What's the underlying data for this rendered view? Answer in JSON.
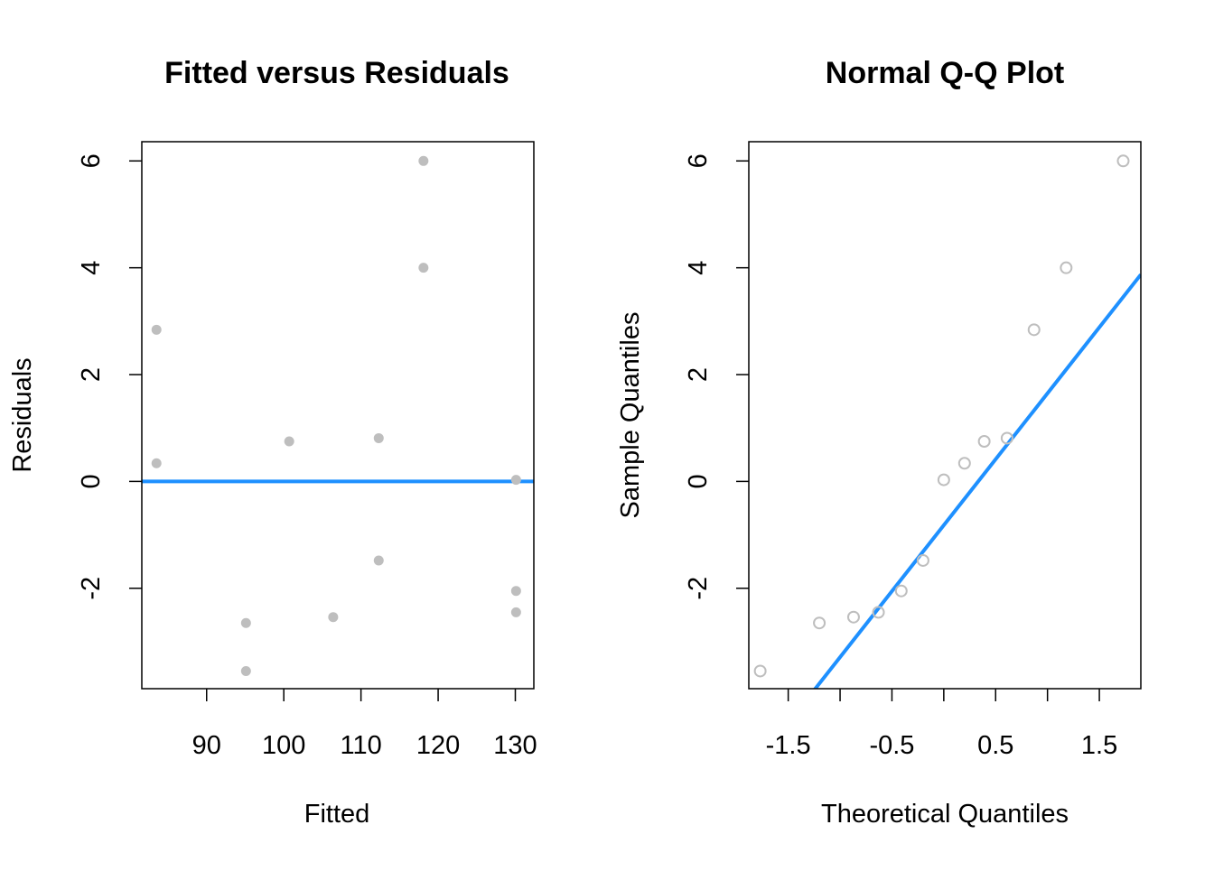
{
  "chart_data": [
    {
      "type": "scatter",
      "title": "Fitted versus Residuals",
      "xlabel": "Fitted",
      "ylabel": "Residuals",
      "xlim": [
        81.6,
        132.4
      ],
      "ylim": [
        -3.88,
        6.36
      ],
      "xticks": [
        90,
        100,
        110,
        120,
        130
      ],
      "yticks": [
        -2,
        0,
        2,
        4,
        6
      ],
      "grid": false,
      "point_color": "#bebebe",
      "point_style": "filled",
      "line_color": "#1e90ff",
      "reference_line": {
        "kind": "horizontal",
        "y": 0
      },
      "points": [
        {
          "x": 83.5,
          "y": 2.84
        },
        {
          "x": 83.5,
          "y": 0.34
        },
        {
          "x": 95.1,
          "y": -2.65
        },
        {
          "x": 95.1,
          "y": -3.55
        },
        {
          "x": 100.7,
          "y": 0.75
        },
        {
          "x": 106.4,
          "y": -2.54
        },
        {
          "x": 112.3,
          "y": 0.81
        },
        {
          "x": 112.3,
          "y": -1.48
        },
        {
          "x": 118.1,
          "y": 6.0
        },
        {
          "x": 118.1,
          "y": 4.0
        },
        {
          "x": 130.1,
          "y": 0.03
        },
        {
          "x": 130.1,
          "y": -2.05
        },
        {
          "x": 130.1,
          "y": -2.45
        }
      ]
    },
    {
      "type": "scatter",
      "title": "Normal Q-Q Plot",
      "xlabel": "Theoretical Quantiles",
      "ylabel": "Sample Quantiles",
      "xlim": [
        -1.88,
        1.9
      ],
      "ylim": [
        -3.88,
        6.36
      ],
      "xticks": [
        -1.5,
        -1.0,
        -0.5,
        0.0,
        0.5,
        1.0,
        1.5
      ],
      "xtick_labels": [
        "-1.5",
        "",
        "-0.5",
        "",
        "0.5",
        "",
        "1.5"
      ],
      "yticks": [
        -2,
        0,
        2,
        4,
        6
      ],
      "grid": false,
      "point_color": "#bebebe",
      "point_style": "open",
      "line_color": "#1e90ff",
      "reference_line": {
        "kind": "qq",
        "slope": 2.47,
        "intercept": -0.82
      },
      "points": [
        {
          "x": -1.77,
          "y": -3.55
        },
        {
          "x": -1.2,
          "y": -2.65
        },
        {
          "x": -0.87,
          "y": -2.54
        },
        {
          "x": -0.63,
          "y": -2.45
        },
        {
          "x": -0.41,
          "y": -2.05
        },
        {
          "x": -0.2,
          "y": -1.48
        },
        {
          "x": 0.0,
          "y": 0.03
        },
        {
          "x": 0.2,
          "y": 0.34
        },
        {
          "x": 0.39,
          "y": 0.75
        },
        {
          "x": 0.61,
          "y": 0.81
        },
        {
          "x": 0.87,
          "y": 2.84
        },
        {
          "x": 1.18,
          "y": 4.0
        },
        {
          "x": 1.73,
          "y": 6.0
        }
      ]
    }
  ]
}
